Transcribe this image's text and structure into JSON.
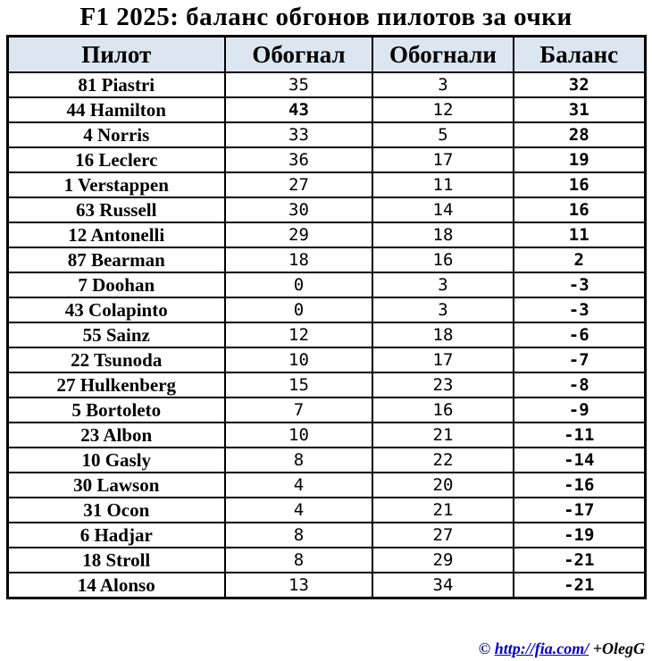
{
  "title": "F1 2025: баланс обгонов пилотов за очки",
  "colors": {
    "header_bg": "#dce6f1",
    "border": "#000000",
    "link_blue": "#0000cc",
    "text": "#000000"
  },
  "chart_data": {
    "type": "table",
    "title": "F1 2025: баланс обгонов пилотов за очки",
    "columns": [
      "Пилот",
      "Обогнал",
      "Обогнали",
      "Баланс"
    ],
    "rows": [
      {
        "driver": "81 Piastri",
        "overtook": "35",
        "overtaken": "3",
        "balance": "32"
      },
      {
        "driver": "44 Hamilton",
        "overtook": "43",
        "overtaken": "12",
        "balance": "31",
        "overtook_bold": true
      },
      {
        "driver": "4 Norris",
        "overtook": "33",
        "overtaken": "5",
        "balance": "28"
      },
      {
        "driver": "16 Leclerc",
        "overtook": "36",
        "overtaken": "17",
        "balance": "19"
      },
      {
        "driver": "1 Verstappen",
        "overtook": "27",
        "overtaken": "11",
        "balance": "16"
      },
      {
        "driver": "63 Russell",
        "overtook": "30",
        "overtaken": "14",
        "balance": "16"
      },
      {
        "driver": "12 Antonelli",
        "overtook": "29",
        "overtaken": "18",
        "balance": "11"
      },
      {
        "driver": "87 Bearman",
        "overtook": "18",
        "overtaken": "16",
        "balance": "2"
      },
      {
        "driver": "7 Doohan",
        "overtook": "0",
        "overtaken": "3",
        "balance": "-3"
      },
      {
        "driver": "43 Colapinto",
        "overtook": "0",
        "overtaken": "3",
        "balance": "-3"
      },
      {
        "driver": "55 Sainz",
        "overtook": "12",
        "overtaken": "18",
        "balance": "-6"
      },
      {
        "driver": "22 Tsunoda",
        "overtook": "10",
        "overtaken": "17",
        "balance": "-7"
      },
      {
        "driver": "27 Hulkenberg",
        "overtook": "15",
        "overtaken": "23",
        "balance": "-8"
      },
      {
        "driver": "5 Bortoleto",
        "overtook": "7",
        "overtaken": "16",
        "balance": "-9"
      },
      {
        "driver": "23 Albon",
        "overtook": "10",
        "overtaken": "21",
        "balance": "-11"
      },
      {
        "driver": "10 Gasly",
        "overtook": "8",
        "overtaken": "22",
        "balance": "-14"
      },
      {
        "driver": "30 Lawson",
        "overtook": "4",
        "overtaken": "20",
        "balance": "-16"
      },
      {
        "driver": "31 Ocon",
        "overtook": "4",
        "overtaken": "21",
        "balance": "-17"
      },
      {
        "driver": "6 Hadjar",
        "overtook": "8",
        "overtaken": "27",
        "balance": "-19"
      },
      {
        "driver": "18 Stroll",
        "overtook": "8",
        "overtaken": "29",
        "balance": "-21"
      },
      {
        "driver": "14 Alonso",
        "overtook": "13",
        "overtaken": "34",
        "balance": "-21"
      }
    ]
  },
  "footer": {
    "copyright": "©",
    "link": "http://fia.com/",
    "credit": "+OlegG"
  }
}
